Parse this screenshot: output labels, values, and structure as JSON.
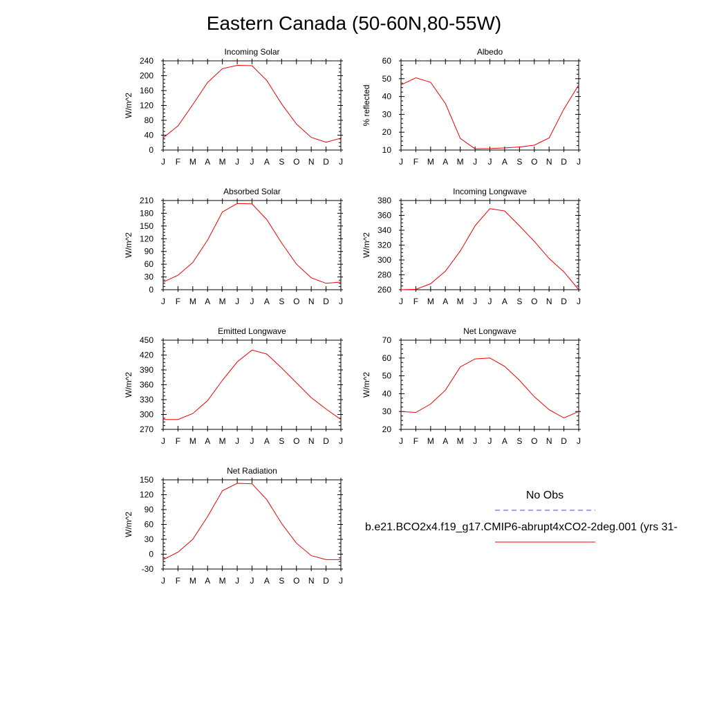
{
  "title": "Eastern Canada (50-60N,80-55W)",
  "legend": {
    "obs_label": "No Obs",
    "obs_color": "#4444ee",
    "model_label": "b.e21.BCO2x4.f19_g17.CMIP6-abrupt4xCO2-2deg.001 (yrs 31-",
    "model_color": "#ee0000"
  },
  "chart_data": [
    {
      "type": "line",
      "title": "Incoming Solar",
      "ylabel": "W/m^2",
      "categories": [
        "J",
        "F",
        "M",
        "A",
        "M",
        "J",
        "J",
        "A",
        "S",
        "O",
        "N",
        "D",
        "J"
      ],
      "ylim": [
        0,
        240
      ],
      "yticks": [
        0,
        40,
        80,
        120,
        160,
        200,
        240
      ],
      "series": [
        {
          "values": [
            33,
            65,
            122,
            182,
            219,
            228,
            227,
            187,
            124,
            70,
            34,
            21,
            32
          ]
        }
      ]
    },
    {
      "type": "line",
      "title": "Albedo",
      "ylabel": "% reflected",
      "categories": [
        "J",
        "F",
        "M",
        "A",
        "M",
        "J",
        "J",
        "A",
        "S",
        "O",
        "N",
        "D",
        "J"
      ],
      "ylim": [
        10,
        60
      ],
      "yticks": [
        10,
        20,
        30,
        40,
        50,
        60
      ],
      "series": [
        {
          "values": [
            46.5,
            50.5,
            48,
            36,
            16.5,
            10.7,
            10.8,
            11.2,
            11.7,
            12.7,
            16.8,
            33,
            46.5
          ]
        }
      ]
    },
    {
      "type": "line",
      "title": "Absorbed Solar",
      "ylabel": "W/m^2",
      "categories": [
        "J",
        "F",
        "M",
        "A",
        "M",
        "J",
        "J",
        "A",
        "S",
        "O",
        "N",
        "D",
        "J"
      ],
      "ylim": [
        0,
        210
      ],
      "yticks": [
        0,
        30,
        60,
        90,
        120,
        150,
        180,
        210
      ],
      "series": [
        {
          "values": [
            18,
            34,
            64,
            117,
            183,
            203,
            202,
            165,
            110,
            60,
            28,
            15,
            18
          ]
        }
      ]
    },
    {
      "type": "line",
      "title": "Incoming Longwave",
      "ylabel": "W/m^2",
      "categories": [
        "J",
        "F",
        "M",
        "A",
        "M",
        "J",
        "J",
        "A",
        "S",
        "O",
        "N",
        "D",
        "J"
      ],
      "ylim": [
        260,
        380
      ],
      "yticks": [
        260,
        280,
        300,
        320,
        340,
        360,
        380
      ],
      "series": [
        {
          "values": [
            260,
            260.5,
            268,
            285,
            312,
            346,
            369,
            366,
            346,
            325,
            302,
            284,
            260
          ]
        }
      ]
    },
    {
      "type": "line",
      "title": "Emitted Longwave",
      "ylabel": "W/m^2",
      "categories": [
        "J",
        "F",
        "M",
        "A",
        "M",
        "J",
        "J",
        "A",
        "S",
        "O",
        "N",
        "D",
        "J"
      ],
      "ylim": [
        270,
        450
      ],
      "yticks": [
        270,
        300,
        330,
        360,
        390,
        420,
        450
      ],
      "series": [
        {
          "values": [
            290,
            290,
            302,
            328,
            369,
            406,
            430,
            422,
            394,
            364,
            334,
            311,
            290
          ]
        }
      ]
    },
    {
      "type": "line",
      "title": "Net Longwave",
      "ylabel": "W/m^2",
      "categories": [
        "J",
        "F",
        "M",
        "A",
        "M",
        "J",
        "J",
        "A",
        "S",
        "O",
        "N",
        "D",
        "J"
      ],
      "ylim": [
        20,
        70
      ],
      "yticks": [
        20,
        30,
        40,
        50,
        60,
        70
      ],
      "series": [
        {
          "values": [
            30,
            29.5,
            34.2,
            42,
            55,
            59.5,
            60,
            55.3,
            47.5,
            38.3,
            31,
            26.4,
            30
          ]
        }
      ]
    },
    {
      "type": "line",
      "title": "Net Radiation",
      "ylabel": "W/m^2",
      "categories": [
        "J",
        "F",
        "M",
        "A",
        "M",
        "J",
        "J",
        "A",
        "S",
        "O",
        "N",
        "D",
        "J"
      ],
      "ylim": [
        -30,
        150
      ],
      "yticks": [
        -30,
        0,
        30,
        60,
        90,
        120,
        150
      ],
      "series": [
        {
          "values": [
            -11,
            4,
            30,
            76,
            128,
            143,
            142,
            110,
            62,
            22,
            -3,
            -11,
            -11
          ]
        }
      ]
    }
  ]
}
